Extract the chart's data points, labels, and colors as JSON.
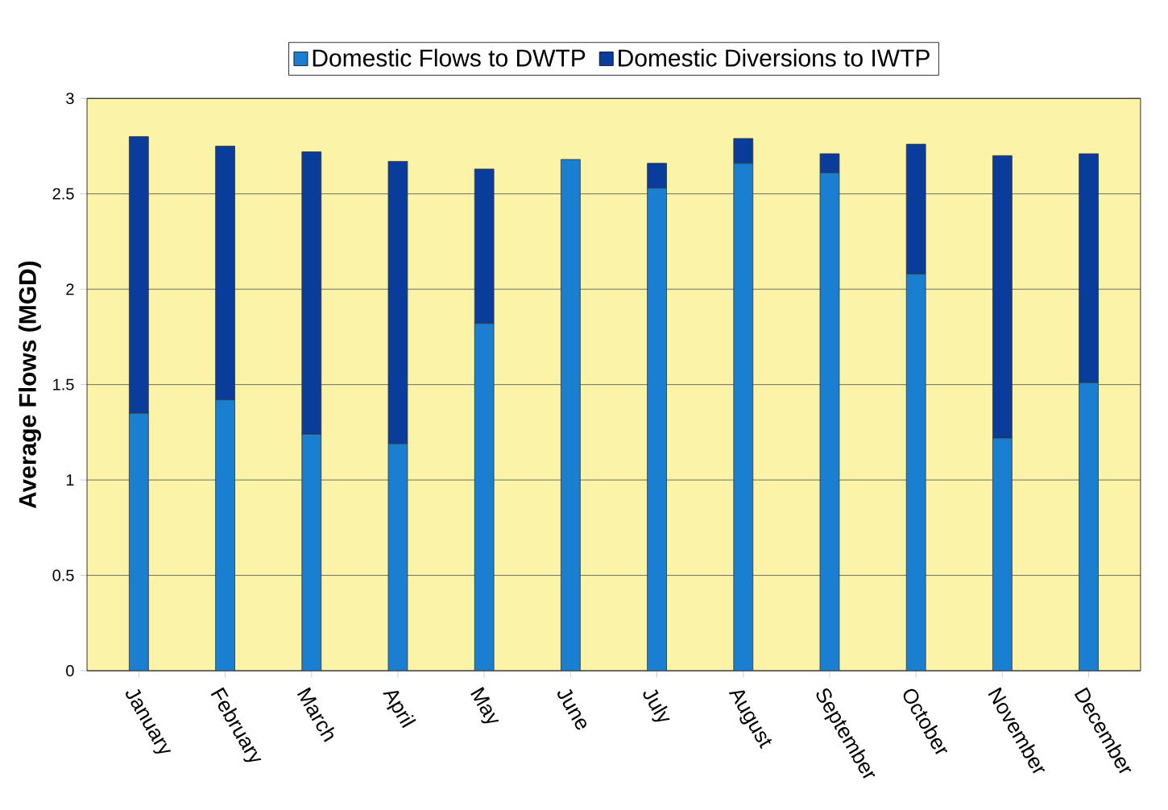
{
  "chart_data": {
    "type": "bar",
    "stacked": true,
    "ylabel": "Average Flows (MGD)",
    "categories": [
      "January",
      "February",
      "March",
      "April",
      "May",
      "June",
      "July",
      "August",
      "September",
      "October",
      "November",
      "December"
    ],
    "series": [
      {
        "name": "Domestic Flows to DWTP",
        "color": "#1a7fd0",
        "values": [
          1.35,
          1.42,
          1.24,
          1.19,
          1.82,
          2.68,
          2.53,
          2.66,
          2.61,
          2.08,
          1.22,
          1.51
        ]
      },
      {
        "name": "Domestic Diversions to IWTP",
        "color": "#0a3c9c",
        "values": [
          1.45,
          1.33,
          1.48,
          1.48,
          0.81,
          0,
          0.13,
          0.13,
          0.1,
          0.68,
          1.48,
          1.2
        ]
      }
    ],
    "ylim": [
      0,
      3
    ],
    "yticks": [
      0,
      0.5,
      1,
      1.5,
      2,
      2.5,
      3
    ],
    "grid": "y",
    "legend": "top"
  }
}
